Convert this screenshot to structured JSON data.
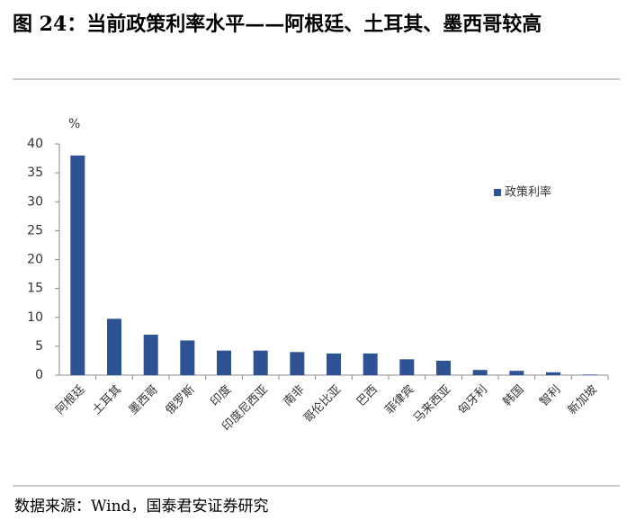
{
  "chart_data": {
    "type": "bar",
    "title": "图 24：当前政策利率水平——阿根廷、土耳其、墨西哥较高",
    "y_unit": "%",
    "source": "数据来源：Wind，国泰君安证券研究",
    "categories": [
      "阿根廷",
      "土耳其",
      "墨西哥",
      "俄罗斯",
      "印度",
      "印度尼西亚",
      "南非",
      "哥伦比亚",
      "巴西",
      "菲律宾",
      "马来西亚",
      "匈牙利",
      "韩国",
      "智利",
      "新加坡"
    ],
    "series": [
      {
        "name": "政策利率",
        "color": "#2e5395",
        "values": [
          38,
          9.75,
          7,
          6,
          4.25,
          4.25,
          4,
          3.75,
          3.75,
          2.75,
          2.5,
          0.9,
          0.75,
          0.5,
          0.1
        ]
      }
    ],
    "ylim": [
      0,
      40
    ],
    "yticks": [
      0,
      5,
      10,
      15,
      20,
      25,
      30,
      35,
      40
    ],
    "legend": "right"
  }
}
